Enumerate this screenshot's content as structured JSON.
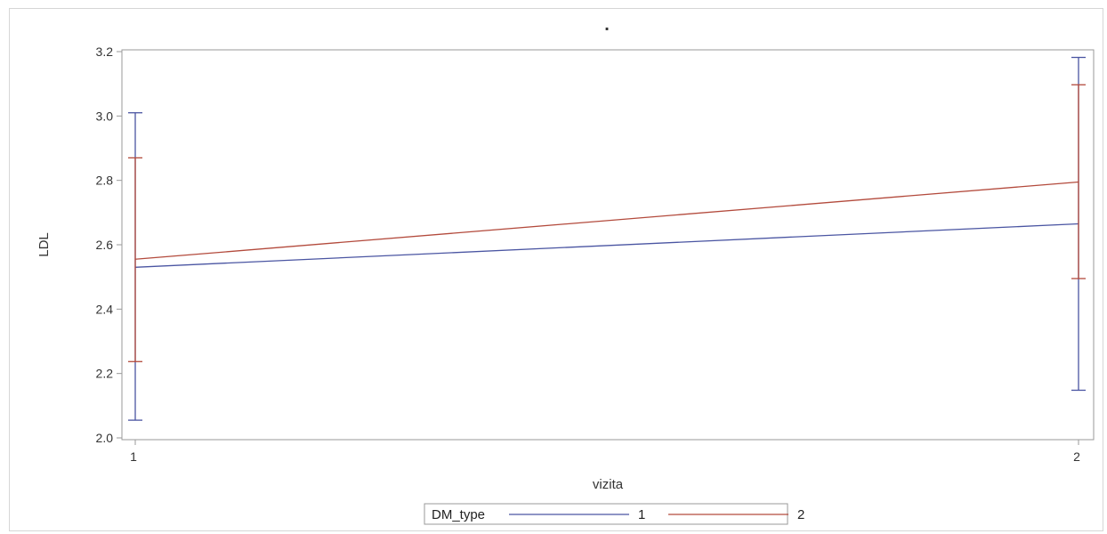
{
  "chart_data": {
    "type": "line",
    "title": ".",
    "xlabel": "vizita",
    "ylabel": "LDL",
    "categories": [
      "1",
      "2"
    ],
    "x": [
      1,
      2
    ],
    "ylim": [
      2.0,
      3.2
    ],
    "yticks": [
      "2.0",
      "2.2",
      "2.4",
      "2.6",
      "2.8",
      "3.0",
      "3.2"
    ],
    "grid": false,
    "legend": {
      "title": "DM_type",
      "position": "bottom-center"
    },
    "series": [
      {
        "name": "1",
        "color": "#4a55a2",
        "values": [
          2.53,
          2.665
        ],
        "lower": [
          2.055,
          2.148
        ],
        "upper": [
          3.01,
          3.182
        ]
      },
      {
        "name": "2",
        "color": "#b34a3c",
        "values": [
          2.555,
          2.795
        ],
        "lower": [
          2.237,
          2.495
        ],
        "upper": [
          2.87,
          3.097
        ]
      }
    ]
  }
}
